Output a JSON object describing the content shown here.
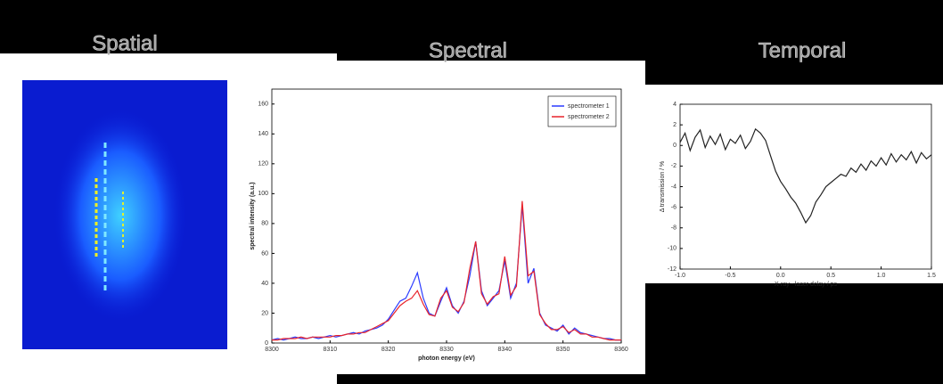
{
  "headings": [
    "Spatial",
    "Spectral",
    "Temporal"
  ],
  "chart_data": [
    {
      "type": "line",
      "xlabel": "photon energy (eV)",
      "ylabel": "spectral intensity (a.u.)",
      "x": [
        8300,
        8301,
        8302,
        8303,
        8304,
        8305,
        8306,
        8307,
        8308,
        8309,
        8310,
        8311,
        8312,
        8313,
        8314,
        8315,
        8316,
        8317,
        8318,
        8319,
        8320,
        8321,
        8322,
        8323,
        8324,
        8325,
        8326,
        8327,
        8328,
        8329,
        8330,
        8331,
        8332,
        8333,
        8334,
        8335,
        8336,
        8337,
        8338,
        8339,
        8340,
        8341,
        8342,
        8343,
        8344,
        8345,
        8346,
        8347,
        8348,
        8349,
        8350,
        8351,
        8352,
        8353,
        8354,
        8355,
        8356,
        8357,
        8358,
        8359,
        8360
      ],
      "series": [
        {
          "name": "spectrometer 1",
          "color": "#2b3bff",
          "values": [
            2,
            3,
            2,
            3,
            4,
            3,
            3,
            4,
            3,
            4,
            5,
            4,
            5,
            6,
            7,
            6,
            8,
            9,
            10,
            12,
            16,
            22,
            28,
            30,
            38,
            47,
            30,
            20,
            18,
            28,
            37,
            25,
            20,
            28,
            45,
            68,
            35,
            25,
            30,
            35,
            55,
            30,
            40,
            92,
            40,
            50,
            20,
            12,
            10,
            8,
            12,
            6,
            10,
            7,
            6,
            5,
            4,
            3,
            3,
            2,
            2
          ]
        },
        {
          "name": "spectrometer 2",
          "color": "#e8232b",
          "values": [
            2,
            2,
            3,
            3,
            3,
            4,
            3,
            4,
            4,
            4,
            4,
            5,
            5,
            6,
            6,
            7,
            7,
            9,
            11,
            13,
            15,
            20,
            25,
            28,
            30,
            35,
            26,
            19,
            18,
            30,
            35,
            24,
            21,
            27,
            50,
            68,
            33,
            26,
            31,
            33,
            58,
            32,
            38,
            95,
            45,
            48,
            19,
            13,
            9,
            9,
            11,
            7,
            9,
            6,
            6,
            4,
            4,
            3,
            2,
            2,
            2
          ]
        }
      ],
      "xlim": [
        8300,
        8360
      ],
      "xticks": [
        8300,
        8310,
        8320,
        8330,
        8340,
        8350,
        8360
      ],
      "ylim": [
        0,
        170
      ],
      "yticks": [
        0,
        20,
        40,
        60,
        80,
        100,
        120,
        140,
        160
      ],
      "legend": "upper right"
    },
    {
      "type": "line",
      "xlabel": "X-ray - laser delay / ps",
      "ylabel": "Δ transmission / %",
      "color": "#222222",
      "x": [
        -1.0,
        -0.95,
        -0.9,
        -0.85,
        -0.8,
        -0.75,
        -0.7,
        -0.65,
        -0.6,
        -0.55,
        -0.5,
        -0.45,
        -0.4,
        -0.35,
        -0.3,
        -0.25,
        -0.2,
        -0.15,
        -0.1,
        -0.05,
        0.0,
        0.05,
        0.1,
        0.15,
        0.2,
        0.25,
        0.3,
        0.35,
        0.4,
        0.45,
        0.5,
        0.55,
        0.6,
        0.65,
        0.7,
        0.75,
        0.8,
        0.85,
        0.9,
        0.95,
        1.0,
        1.05,
        1.1,
        1.15,
        1.2,
        1.25,
        1.3,
        1.35,
        1.4,
        1.45,
        1.5
      ],
      "values": [
        0.3,
        1.2,
        -0.5,
        0.8,
        1.5,
        -0.2,
        0.9,
        0.1,
        1.1,
        -0.4,
        0.6,
        0.2,
        1.0,
        -0.3,
        0.4,
        1.6,
        1.2,
        0.5,
        -1.0,
        -2.5,
        -3.5,
        -4.2,
        -5.0,
        -5.6,
        -6.5,
        -7.5,
        -6.8,
        -5.5,
        -4.8,
        -4.0,
        -3.6,
        -3.2,
        -2.8,
        -3.0,
        -2.2,
        -2.6,
        -1.8,
        -2.4,
        -1.5,
        -2.0,
        -1.2,
        -1.9,
        -0.8,
        -1.6,
        -0.9,
        -1.4,
        -0.6,
        -1.7,
        -0.7,
        -1.3,
        -0.9
      ],
      "xlim": [
        -1.0,
        1.5
      ],
      "xticks": [
        {
          "value": -1.0,
          "label": "-1.0"
        },
        {
          "value": -0.5,
          "label": "-0.5"
        },
        {
          "value": 0.0,
          "label": "0.0"
        },
        {
          "value": 0.5,
          "label": "0.5"
        },
        {
          "value": 1.0,
          "label": "1.0"
        },
        {
          "value": 1.5,
          "label": "1.5"
        }
      ],
      "ylim": [
        -12,
        4
      ],
      "yticks": [
        -12,
        -10,
        -8,
        -6,
        -4,
        -2,
        0,
        2,
        4
      ]
    }
  ]
}
